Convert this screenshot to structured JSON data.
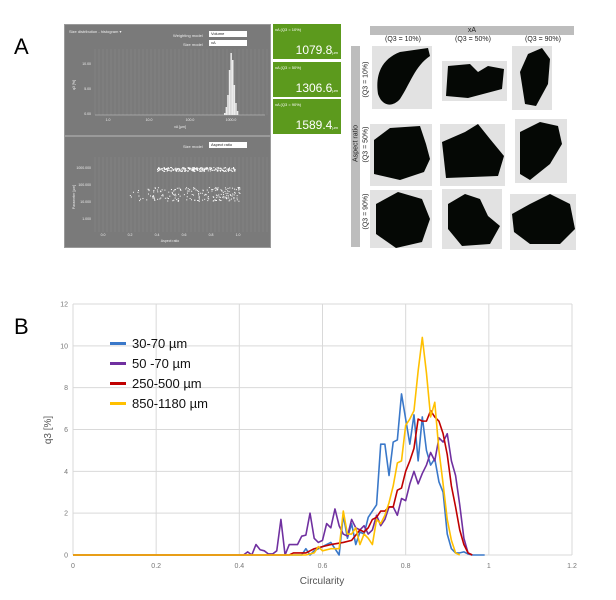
{
  "panel_labels": {
    "a": "A",
    "b": "B"
  },
  "software": {
    "histogram": {
      "title": "Size distribution - histogram ▾",
      "weighting_label": "Weighting model",
      "weighting_value": "Volume",
      "size_model_label": "Size model",
      "size_model_value": "xA",
      "ylabel": "q3 [%]",
      "xlabel": "xA [µm]",
      "yticks": [
        "10.00",
        "5.00",
        "0.00"
      ],
      "xticks": [
        "1.0",
        "10.0",
        "100.0",
        "1000.0"
      ]
    },
    "scatter": {
      "size_model_label": "Size model",
      "size_model_value": "Aspect ratio",
      "ylabel": "Parameter [µm]",
      "xlabel": "Aspect ratio",
      "yticks": [
        "1000.000",
        "100.000",
        "10.000",
        "1.000"
      ],
      "xticks": [
        "0.0",
        "0.2",
        "0.4",
        "0.6",
        "0.8",
        "1.0"
      ]
    },
    "quantiles": [
      {
        "label": "xA (Q3 = 10%)",
        "value": "1079.8",
        "unit": "µm"
      },
      {
        "label": "xA (Q3 = 50%)",
        "value": "1306.6",
        "unit": "µm"
      },
      {
        "label": "xA (Q3 = 90%)",
        "value": "1589.4",
        "unit": "µm"
      }
    ],
    "accent": "#5c9a1d"
  },
  "particle_grid": {
    "col_header": "xA",
    "row_header": "Aspect ratio",
    "col_labels": [
      "(Q3 = 10%)",
      "(Q3 = 50%)",
      "(Q3 = 90%)"
    ],
    "row_labels": [
      "(Q3 = 10%)",
      "(Q3 = 50%)",
      "(Q3 = 90%)"
    ]
  },
  "chart_data": {
    "type": "line",
    "title": "",
    "xlabel": "Circularity",
    "ylabel": "q3 [%]",
    "xlim": [
      0,
      1.2
    ],
    "ylim": [
      0,
      12
    ],
    "xticks": [
      "0",
      "0.2",
      "0.4",
      "0.6",
      "0.8",
      "1",
      "1.2"
    ],
    "yticks": [
      "0",
      "2",
      "4",
      "6",
      "8",
      "10",
      "12"
    ],
    "grid": true,
    "legend_position": "top-left",
    "series": [
      {
        "name": "30-70 µm",
        "color": "#3a78c9",
        "x": [
          0,
          0.55,
          0.56,
          0.57,
          0.58,
          0.6,
          0.62,
          0.63,
          0.64,
          0.65,
          0.66,
          0.67,
          0.68,
          0.69,
          0.7,
          0.71,
          0.73,
          0.74,
          0.75,
          0.76,
          0.77,
          0.78,
          0.79,
          0.8,
          0.81,
          0.82,
          0.83,
          0.84,
          0.85,
          0.86,
          0.87,
          0.88,
          0.89,
          0.9,
          0.91,
          0.92,
          0.93,
          0.94,
          0.95,
          0.96,
          0.99
        ],
        "y": [
          0,
          0,
          0.3,
          0,
          0.2,
          0.4,
          0.6,
          0.3,
          0,
          1.9,
          0.8,
          1.5,
          0.5,
          1.1,
          1.0,
          1.8,
          2.4,
          5.3,
          5.3,
          3.8,
          5.4,
          5.5,
          7.7,
          6.5,
          5.3,
          6.7,
          4.5,
          6.6,
          5.0,
          4.3,
          4.6,
          3.5,
          3.0,
          1.0,
          0.3,
          0.1,
          0.1,
          0.15,
          0.05,
          0,
          0
        ]
      },
      {
        "name": "50 -70 µm",
        "color": "#7030a0",
        "x": [
          0,
          0.41,
          0.42,
          0.43,
          0.44,
          0.45,
          0.46,
          0.47,
          0.48,
          0.49,
          0.5,
          0.51,
          0.52,
          0.54,
          0.55,
          0.56,
          0.57,
          0.58,
          0.59,
          0.6,
          0.61,
          0.62,
          0.63,
          0.64,
          0.65,
          0.66,
          0.67,
          0.68,
          0.69,
          0.7,
          0.71,
          0.72,
          0.73,
          0.74,
          0.75,
          0.76,
          0.77,
          0.78,
          0.79,
          0.8,
          0.81,
          0.82,
          0.83,
          0.84,
          0.85,
          0.86,
          0.87,
          0.88,
          0.89,
          0.9,
          0.91,
          0.92,
          0.93,
          0.94,
          0.95,
          0.96
        ],
        "y": [
          0,
          0,
          0.15,
          0,
          0.5,
          0.25,
          0.2,
          0.05,
          0.05,
          0.2,
          1.7,
          0,
          0.5,
          0.5,
          0.9,
          0.95,
          2.0,
          0.8,
          0.6,
          0.7,
          1.5,
          1.3,
          2.2,
          1.4,
          1.0,
          0.9,
          1.7,
          1.3,
          1.2,
          1.4,
          1.0,
          1.2,
          1.9,
          1.4,
          1.7,
          2.3,
          2.3,
          1.9,
          2.7,
          2.6,
          3.4,
          4.0,
          3.4,
          3.9,
          4.3,
          4.9,
          4.5,
          5.6,
          5.4,
          5.8,
          4.5,
          3.8,
          2.4,
          0.8,
          0.1,
          0
        ]
      },
      {
        "name": "250-500 µm",
        "color": "#c00000",
        "x": [
          0,
          0.52,
          0.53,
          0.56,
          0.58,
          0.6,
          0.62,
          0.65,
          0.67,
          0.69,
          0.7,
          0.71,
          0.72,
          0.73,
          0.74,
          0.75,
          0.76,
          0.77,
          0.78,
          0.79,
          0.8,
          0.81,
          0.82,
          0.83,
          0.84,
          0.85,
          0.86,
          0.87,
          0.88,
          0.89,
          0.9,
          0.91,
          0.92,
          0.93,
          0.94,
          0.95,
          0.96
        ],
        "y": [
          0,
          0,
          0.1,
          0.1,
          0.3,
          0.4,
          0.5,
          0.6,
          0.7,
          1.2,
          1.1,
          1.3,
          1.7,
          1.8,
          2.1,
          2.1,
          2.3,
          2.3,
          3.1,
          3.2,
          4.0,
          4.5,
          5.1,
          6.5,
          6.4,
          6.4,
          6.9,
          6.6,
          6.4,
          5.8,
          4.8,
          3.3,
          2.3,
          1.2,
          0.5,
          0.1,
          0
        ]
      },
      {
        "name": "850-1180 µm",
        "color": "#ffc000",
        "x": [
          0,
          0.56,
          0.58,
          0.59,
          0.6,
          0.62,
          0.64,
          0.65,
          0.66,
          0.67,
          0.68,
          0.69,
          0.7,
          0.71,
          0.72,
          0.73,
          0.74,
          0.75,
          0.76,
          0.77,
          0.78,
          0.79,
          0.8,
          0.81,
          0.82,
          0.83,
          0.84,
          0.85,
          0.86,
          0.87,
          0.88,
          0.89,
          0.9,
          0.91,
          0.92,
          0.93
        ],
        "y": [
          0,
          0,
          0.1,
          0.4,
          0.2,
          0.3,
          0.3,
          2.1,
          1.0,
          1.0,
          1.3,
          0.5,
          1.0,
          0.8,
          0.5,
          1.7,
          1.5,
          1.9,
          2.5,
          3.3,
          4.4,
          4.5,
          6.2,
          6.5,
          6.9,
          8.8,
          10.4,
          8.7,
          6.6,
          7.3,
          5.0,
          3.4,
          1.7,
          0.7,
          0.1,
          0
        ]
      }
    ]
  }
}
